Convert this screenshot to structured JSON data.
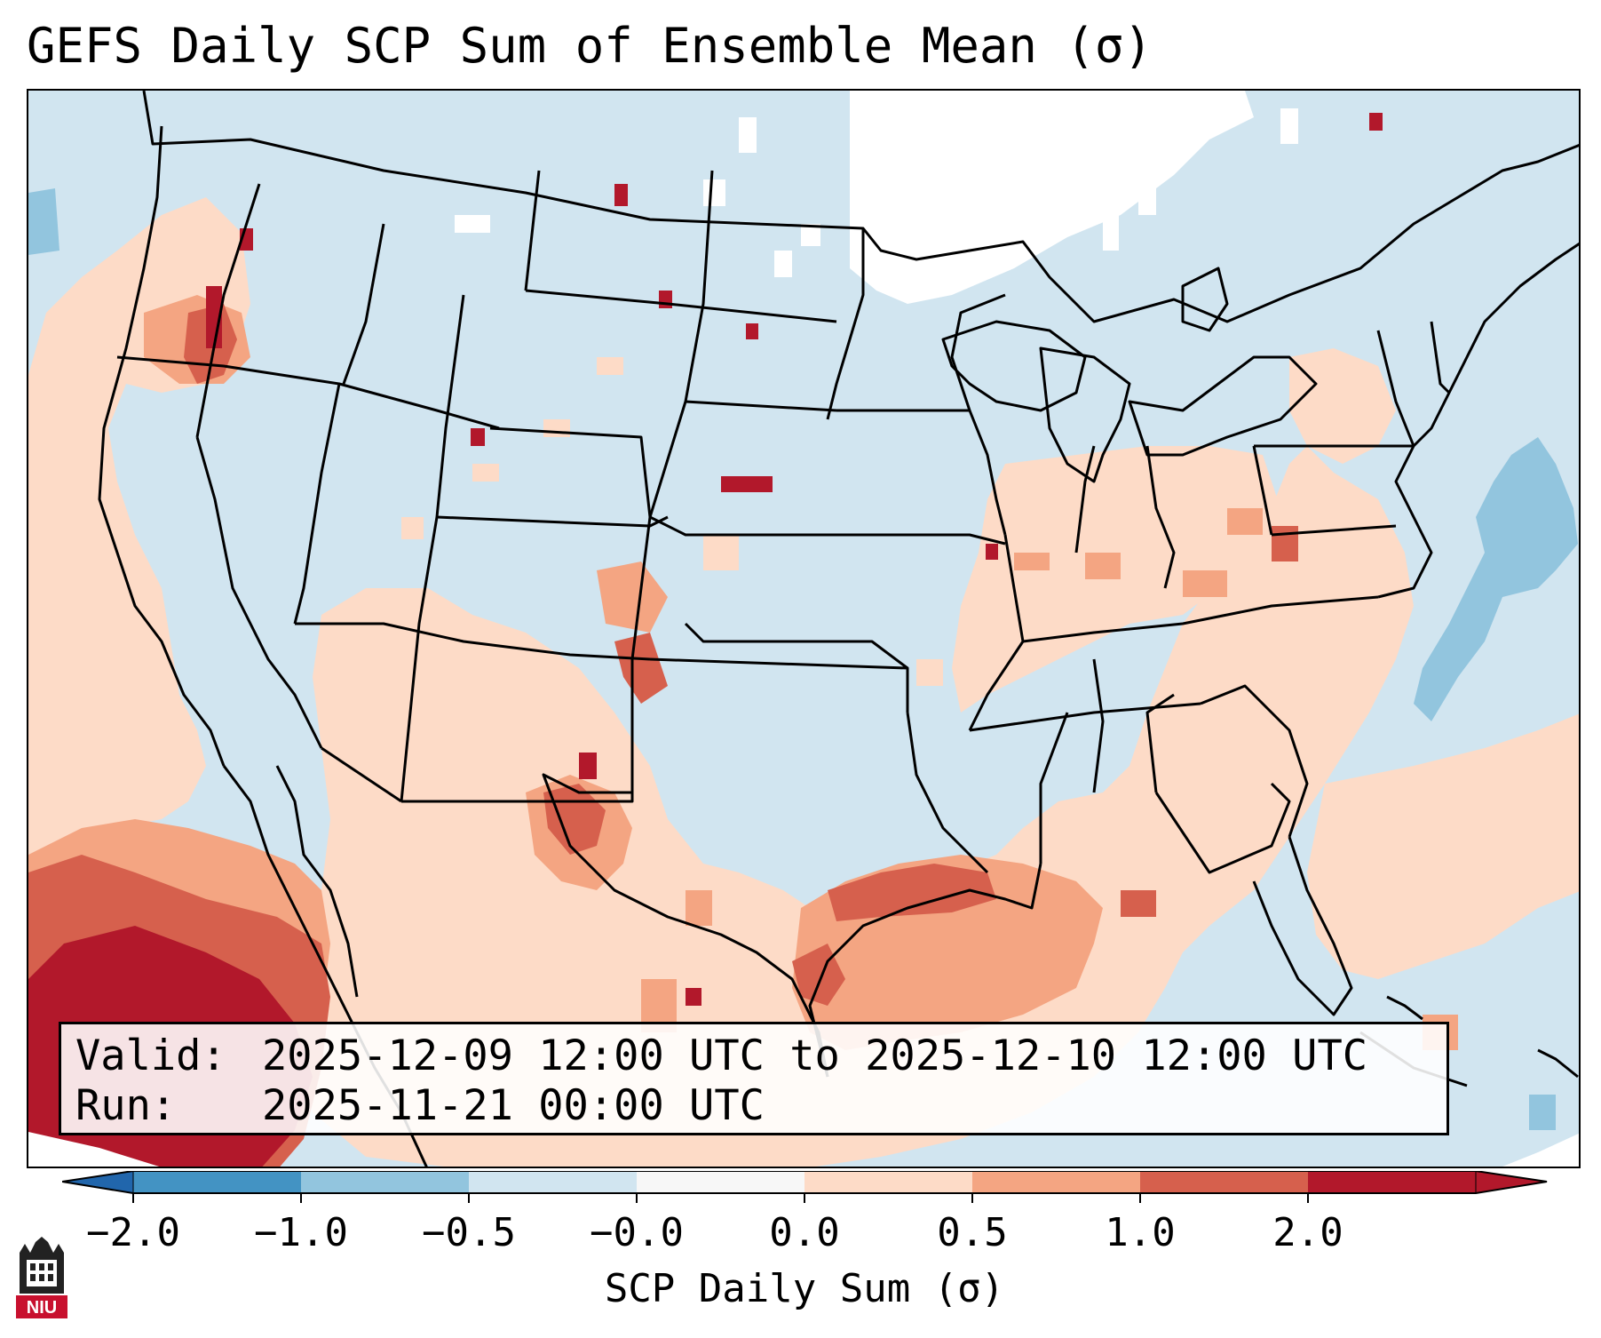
{
  "title": "GEFS Daily SCP Sum of Ensemble Mean (σ)",
  "info": {
    "valid_label": "Valid:",
    "valid_value": "2025-12-09 12:00 UTC to 2025-12-10 12:00 UTC",
    "run_label": "Run:",
    "run_value": "2025-11-21 00:00 UTC"
  },
  "colorbar": {
    "label": "SCP Daily Sum (σ)",
    "ticks": [
      "−2.0",
      "−1.0",
      "−0.5",
      "−0.0",
      "0.0",
      "0.5",
      "1.0",
      "2.0"
    ],
    "colors": [
      "#4393c3",
      "#92c5de",
      "#d1e5f0",
      "#f7f7f7",
      "#fddbc7",
      "#f4a582",
      "#d6604d",
      "#b2182b"
    ],
    "under_color": "#2166ac",
    "over_color": "#b2182b"
  },
  "map": {
    "domain": "Continental United States",
    "background_color": "#d1e5f0",
    "no_data_color": "#ffffff"
  },
  "logo": {
    "text": "NIU",
    "icon": "niu-castle-icon"
  }
}
